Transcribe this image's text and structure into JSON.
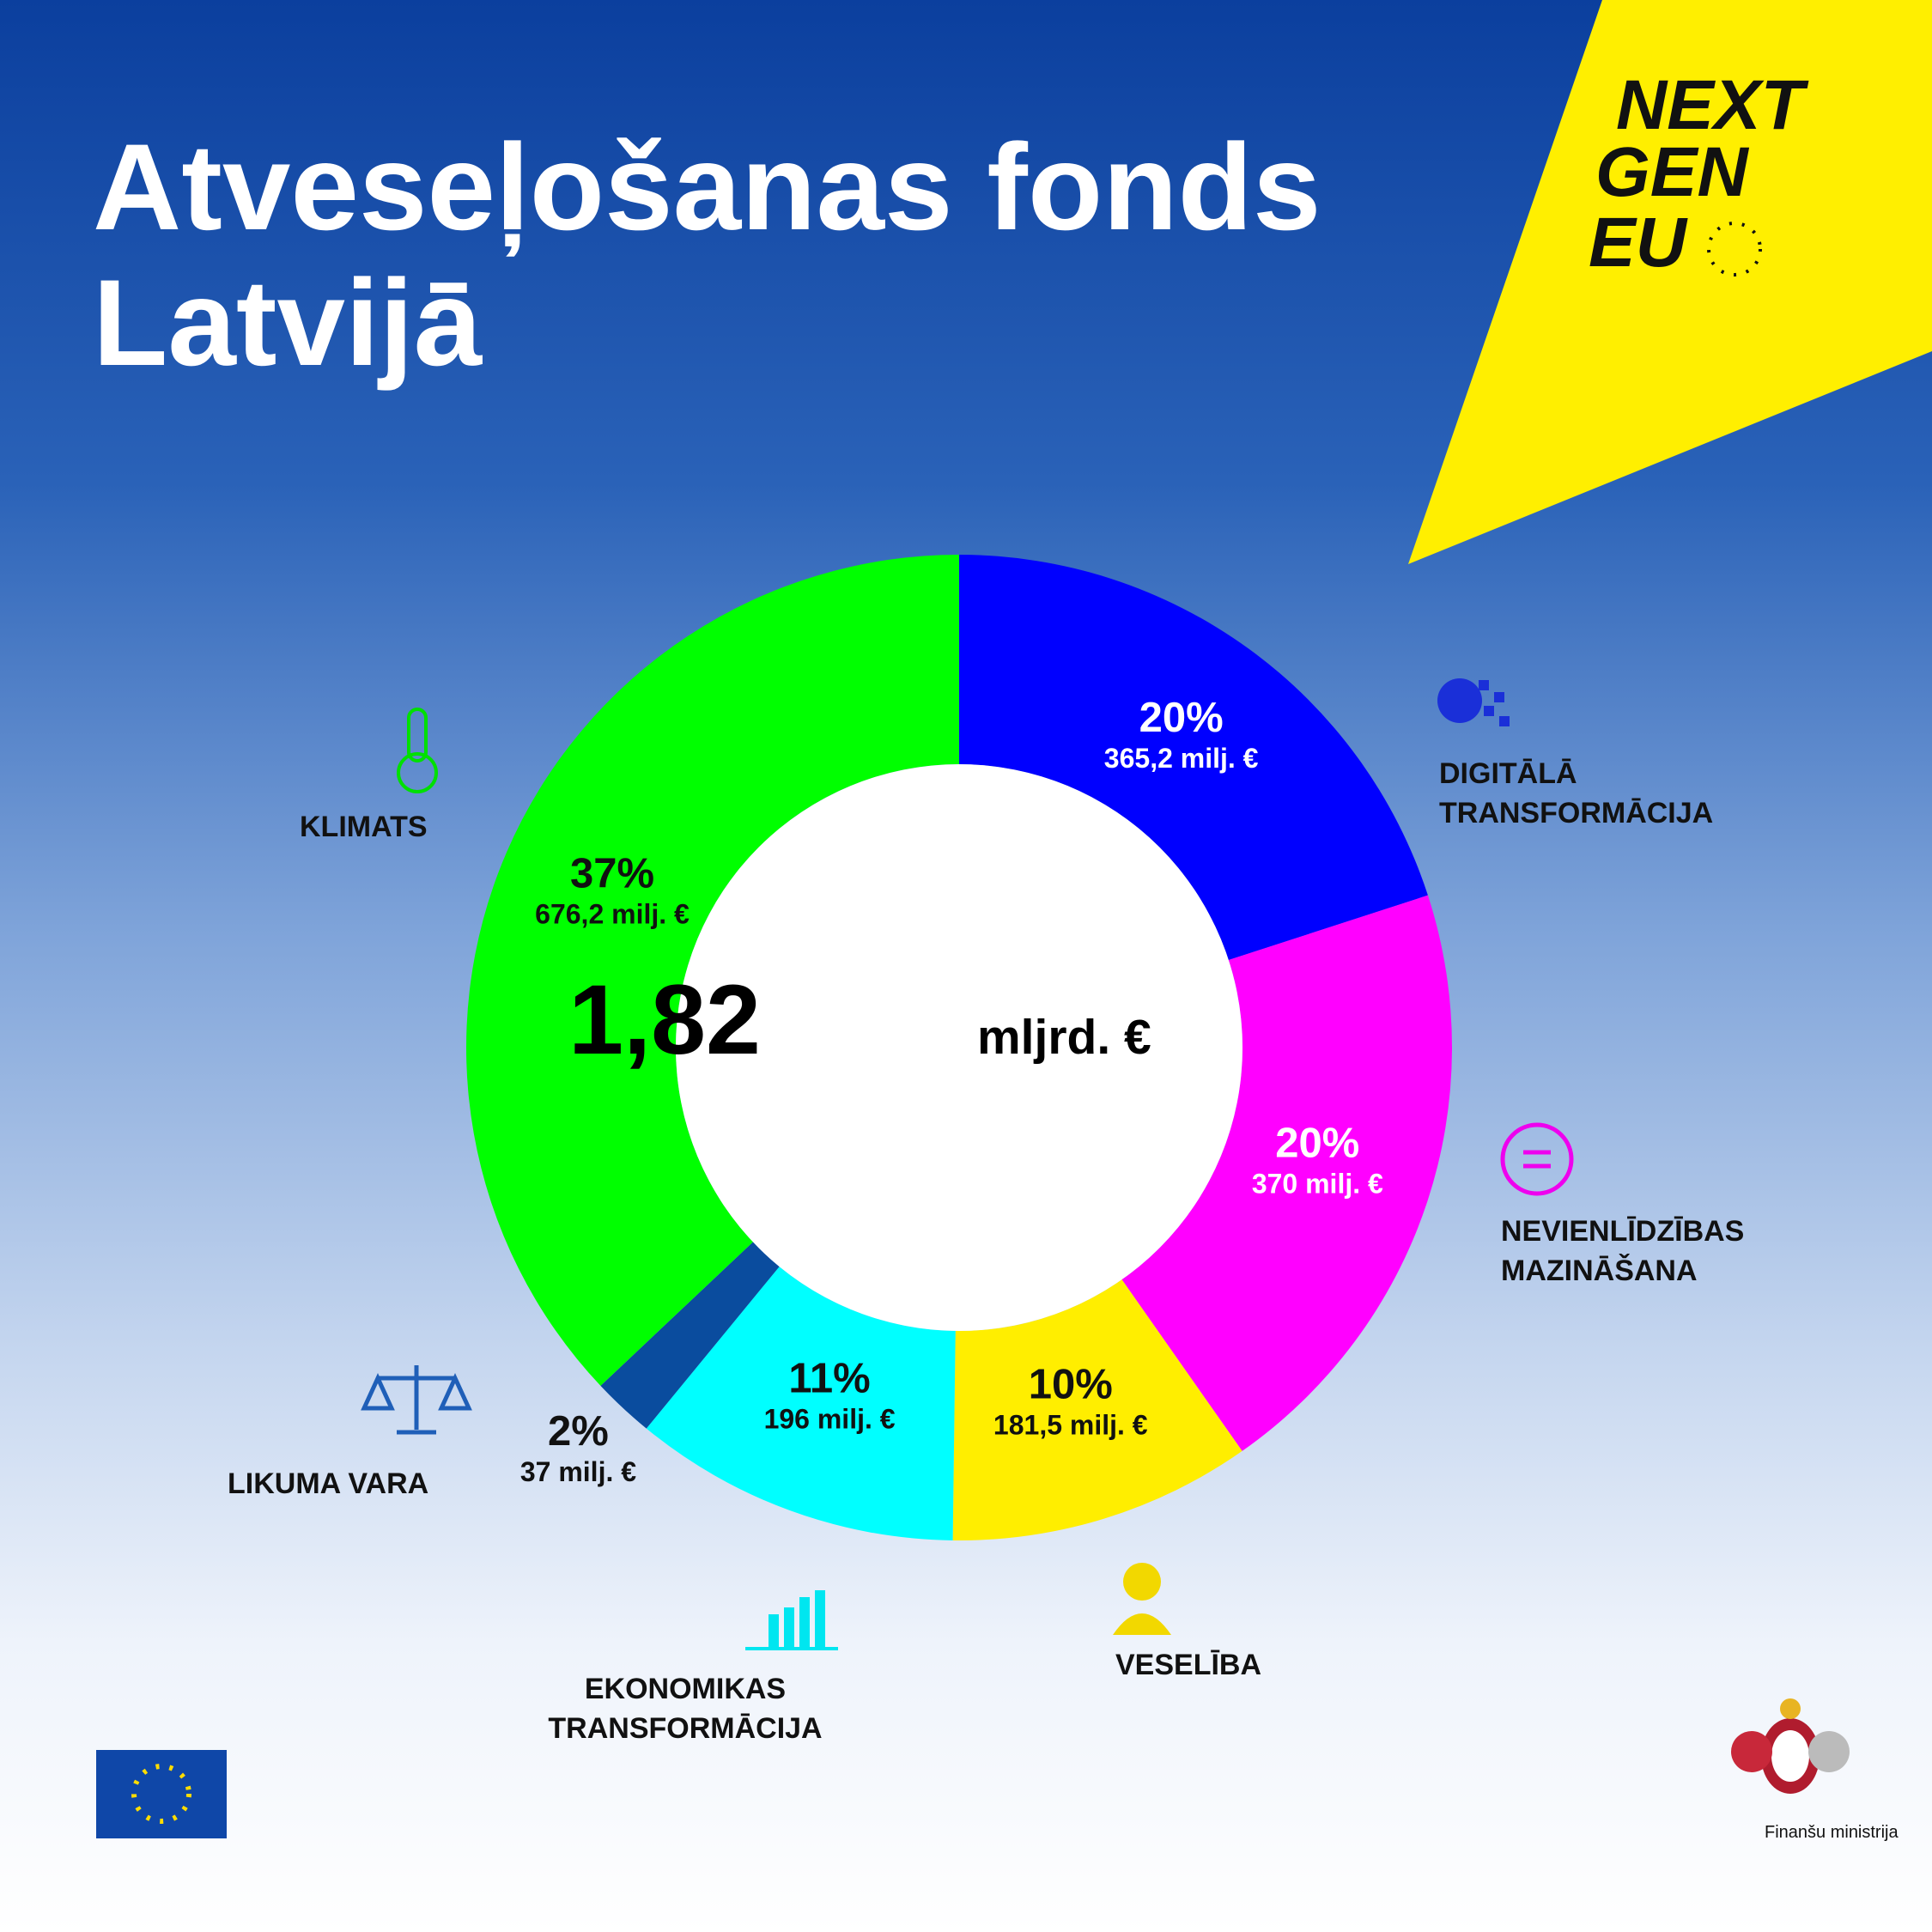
{
  "chart_data": {
    "type": "donut",
    "title": "Atveseļošanas fonds Latvijā",
    "center_value": "1,82",
    "center_unit": "mljrd. €",
    "categories": [
      "DIGITĀLĀ\nTRANSFORMĀCIJA",
      "NEVIENLĪDZĪBAS\nMAZINĀŠANA",
      "VESELĪBA",
      "EKONOMIKAS\nTRANSFORMĀCIJA",
      "LIKUMA VARA",
      "KLIMATS"
    ],
    "values": [
      365.2,
      370,
      181.5,
      196,
      37,
      676.2
    ],
    "value_labels": [
      "365,2 milj. €",
      "370 milj. €",
      "181,5 milj. €",
      "196 milj. €",
      "37 milj. €",
      "676,2 milj. €"
    ],
    "percent_labels": [
      "20%",
      "20%",
      "10%",
      "11%",
      "2%",
      "37%"
    ],
    "colors": [
      "#0000ff",
      "#ff00ff",
      "#ffee00",
      "#00ffff",
      "#0a4c9e",
      "#00ff00"
    ],
    "label_colors": [
      "#ffffff",
      "#ffffff",
      "#111111",
      "#111111",
      "#111111",
      "#111111"
    ],
    "logo": [
      "NEXT",
      "GEN",
      "EU"
    ],
    "ministry": "Finanšu ministrija"
  }
}
